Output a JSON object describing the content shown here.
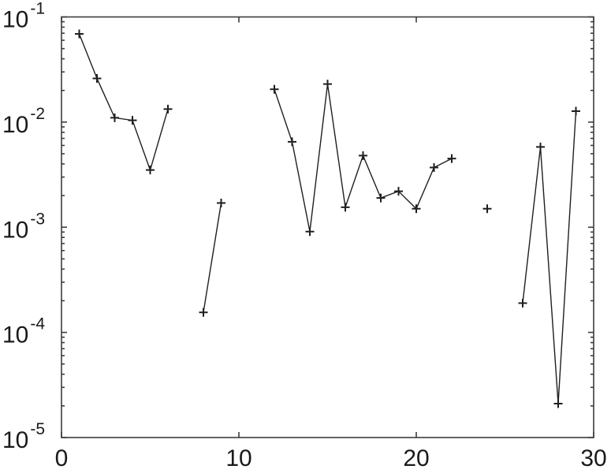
{
  "figure": {
    "background": "#ffffff",
    "axis_color": "#3c3c3c",
    "text_color": "#1a1a1a"
  },
  "chart_data": {
    "type": "line",
    "title": "",
    "xlabel": "",
    "ylabel": "",
    "yscale": "log",
    "xlim": [
      0,
      30
    ],
    "ylim": [
      1e-05,
      0.1
    ],
    "grid": false,
    "legend": null,
    "marker": "plus",
    "line_color": "#1f1f1f",
    "marker_color": "#1f1f1f",
    "x_ticks": [
      0,
      10,
      20,
      30
    ],
    "x_tick_labels": [
      "0",
      "10",
      "20",
      "30"
    ],
    "y_tick_exponents": [
      -1,
      -2,
      -3,
      -4,
      -5
    ],
    "y_tick_base_label": "10",
    "minor_tick_multiples": [
      2,
      3,
      4,
      5,
      6,
      7,
      8,
      9
    ],
    "x": [
      1,
      2,
      3,
      4,
      5,
      6,
      7,
      8,
      9,
      10,
      11,
      12,
      13,
      14,
      15,
      16,
      17,
      18,
      19,
      20,
      21,
      22,
      23,
      24,
      25,
      26,
      27,
      28,
      29,
      30
    ],
    "y": [
      0.069,
      0.026,
      0.011,
      0.0104,
      0.0035,
      0.0133,
      null,
      0.000155,
      0.0017,
      null,
      null,
      0.0205,
      0.0065,
      0.00091,
      0.023,
      0.00155,
      0.0048,
      0.0019,
      0.0022,
      0.0015,
      0.0037,
      0.0045,
      null,
      0.0015,
      null,
      0.00019,
      0.0058,
      2.1e-05,
      0.0127,
      null
    ]
  }
}
